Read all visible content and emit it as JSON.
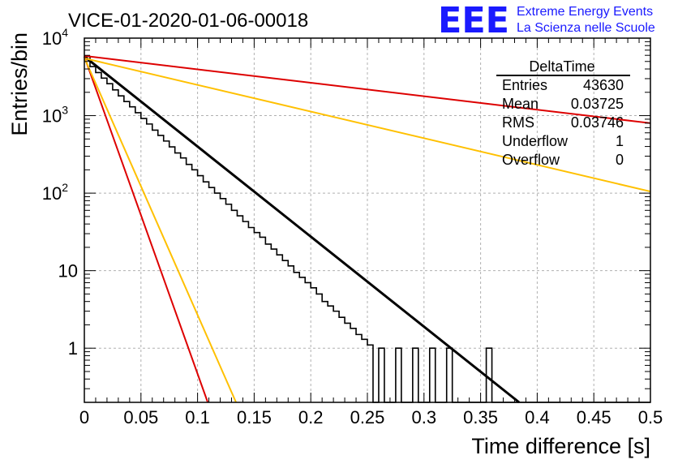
{
  "chart_data": {
    "type": "histogram",
    "title": "VICE-01-2020-01-06-00018",
    "xlabel": "Time difference [s]",
    "ylabel": "Entries/bin",
    "xlim": [
      0,
      0.5
    ],
    "ylim": [
      0.2,
      10000
    ],
    "yscale": "log",
    "grid": true,
    "x_ticks": [
      "0",
      "0.05",
      "0.1",
      "0.15",
      "0.2",
      "0.25",
      "0.3",
      "0.35",
      "0.4",
      "0.45",
      "0.5"
    ],
    "y_ticks": [
      {
        "base": "10",
        "exp": "4",
        "value": 10000
      },
      {
        "base": "10",
        "exp": "3",
        "value": 1000
      },
      {
        "base": "10",
        "exp": "2",
        "value": 100
      },
      {
        "base": "10",
        "exp": "",
        "value": 10
      },
      {
        "base": "1",
        "exp": "",
        "value": 1
      }
    ],
    "bin_width": 0.005,
    "histogram_counts": [
      5800,
      4300,
      3600,
      3050,
      2580,
      2150,
      1800,
      1520,
      1300,
      1090,
      920,
      780,
      650,
      555,
      470,
      395,
      330,
      285,
      235,
      200,
      168,
      140,
      118,
      100,
      85,
      72,
      60,
      51,
      43,
      36,
      31,
      27,
      22,
      19,
      16,
      13.5,
      11.5,
      9.5,
      8.2,
      7,
      6,
      5,
      4,
      3.5,
      3,
      2.5,
      2.1,
      1.8,
      1.5,
      1.3,
      1.1,
      0,
      1,
      0,
      0,
      1,
      0,
      0,
      1,
      0,
      0,
      1,
      0,
      0,
      1,
      0,
      0,
      0,
      0,
      0,
      0,
      1,
      0,
      0,
      0,
      0,
      0,
      0,
      0,
      0,
      0,
      0,
      0,
      0,
      0,
      0,
      0,
      0,
      0,
      0,
      0,
      0,
      0,
      0,
      0,
      0,
      0,
      0,
      0,
      0
    ],
    "series": [
      {
        "color": "#000000",
        "x": [
          0,
          0.384
        ],
        "y": [
          5800,
          0.2
        ]
      },
      {
        "color": "#dd0000",
        "x": [
          0,
          0.5
        ],
        "y": [
          5900,
          800
        ]
      },
      {
        "color": "#ffc000",
        "x": [
          0,
          0.5
        ],
        "y": [
          5500,
          105
        ]
      },
      {
        "color": "#dd0000",
        "x": [
          0,
          0.109
        ],
        "y": [
          5800,
          0.2
        ]
      },
      {
        "color": "#ffc000",
        "x": [
          0,
          0.134
        ],
        "y": [
          5600,
          0.2
        ]
      }
    ],
    "stats_box": {
      "title": "DeltaTime",
      "rows": [
        {
          "label": "Entries",
          "value": "43630"
        },
        {
          "label": "Mean",
          "value": "0.03725"
        },
        {
          "label": "RMS",
          "value": "0.03746"
        },
        {
          "label": "Underflow",
          "value": "1"
        },
        {
          "label": "Overflow",
          "value": "0"
        }
      ]
    }
  },
  "logo": {
    "mark": "EEE",
    "line1": "Extreme Energy Events",
    "line2": "La Scienza nelle Scuole"
  }
}
